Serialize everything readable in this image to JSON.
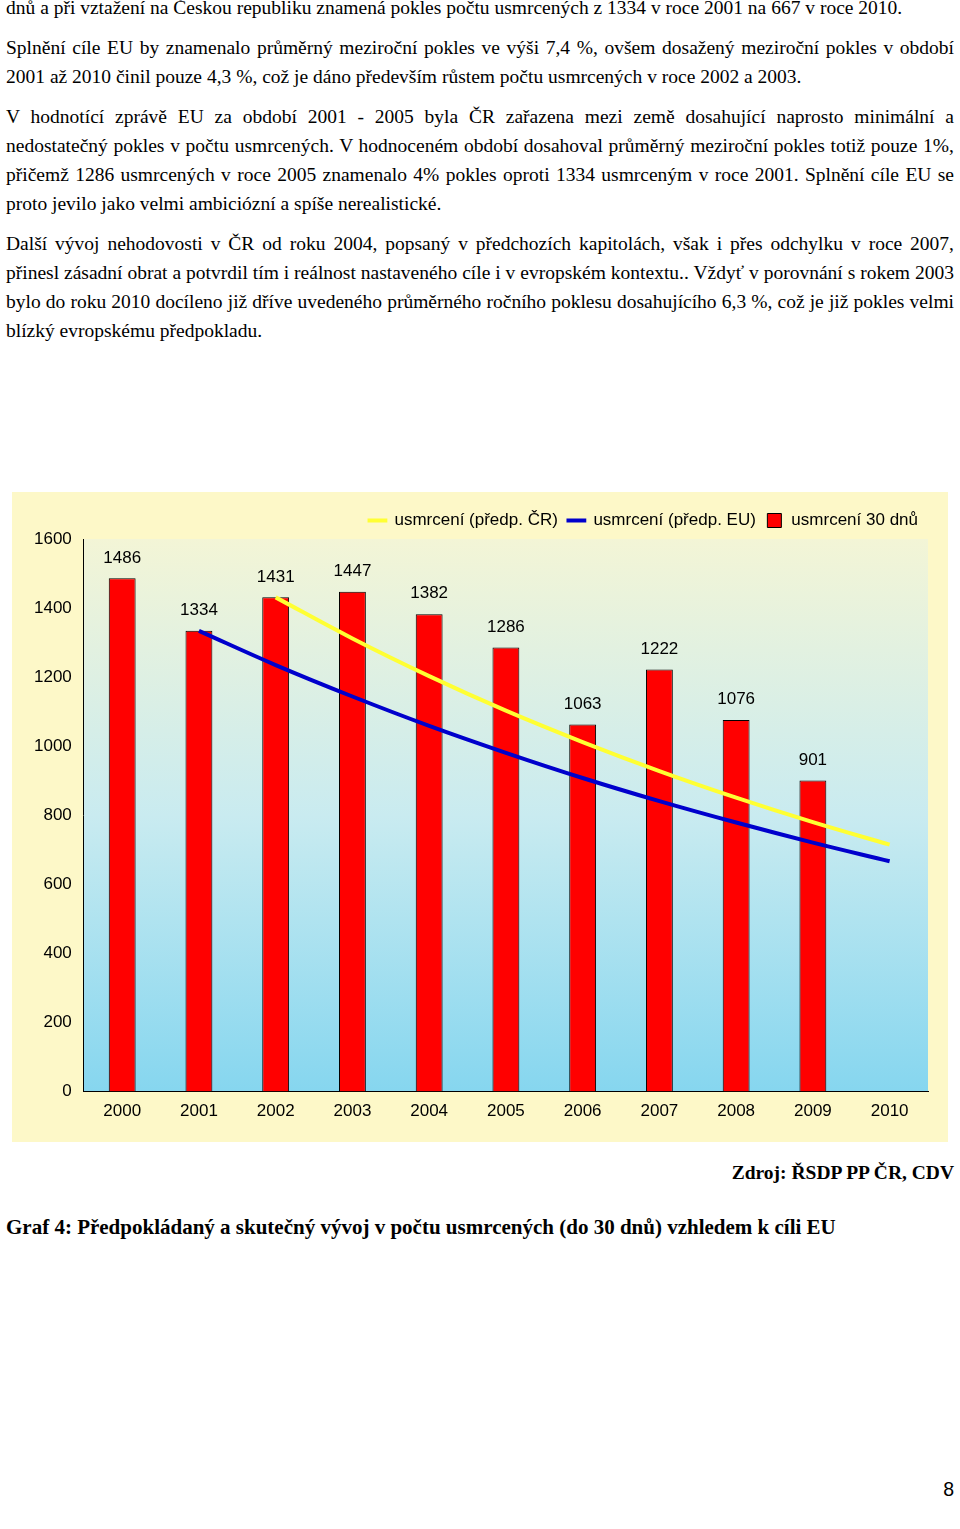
{
  "text": {
    "paragraphs": [
      "dnů a při vztažení na Českou republiku znamená pokles počtu usmrcených z 1334 v roce 2001 na 667 v roce 2010.",
      "Splnění cíle EU by znamenalo průměrný meziroční pokles ve výši 7,4 %, ovšem dosažený meziroční pokles v období 2001 až 2010 činil pouze 4,3 %, což je dáno především růstem počtu usmrcených v roce 2002 a 2003.",
      "V hodnotící zprávě EU za období 2001 - 2005 byla ČR zařazena mezi země dosahující naprosto minimální a nedostatečný pokles v počtu usmrcených. V hodnoceném období dosahoval průměrný meziroční pokles totiž pouze 1%, přičemž 1286 usmrcených v roce 2005 znamenalo 4% pokles oproti 1334 usmrceným v roce 2001. Splnění cíle EU se proto jevilo jako velmi ambiciózní a spíše nerealistické.",
      "Další vývoj nehodovosti v ČR od roku 2004, popsaný v předchozích kapitolách, však i přes odchylku v roce 2007, přinesl zásadní obrat a potvrdil tím i reálnost nastaveného cíle i v evropském kontextu.. Vždyť v porovnání s rokem 2003 bylo do roku 2010 docíleno již dříve uvedeného průměrného ročního poklesu dosahujícího 6,3 %, což je již pokles velmi blízký evropskému předpokladu."
    ],
    "source": "Zdroj: ŘSDP PP ČR, CDV",
    "caption": "Graf 4: Předpokládaný a skutečný vývoj v počtu usmrcených (do 30 dnů) vzhledem k cíli EU",
    "page_number": 8
  },
  "chart_data": {
    "type": "bar",
    "categories": [
      "2000",
      "2001",
      "2002",
      "2003",
      "2004",
      "2005",
      "2006",
      "2007",
      "2008",
      "2009",
      "2010"
    ],
    "series": [
      {
        "name": "usmrcení 30 dnů",
        "type": "bar",
        "color": "#ff0000",
        "data_labels": true,
        "values": [
          1486,
          1334,
          1431,
          1447,
          1382,
          1286,
          1063,
          1222,
          1076,
          901,
          null
        ]
      },
      {
        "name": "usmrcení (předp. ČR)",
        "type": "line",
        "color": "#ffff33",
        "marker": "none",
        "line_style": "solid",
        "values": [
          null,
          null,
          1431,
          1312,
          1203,
          1103,
          1012,
          928,
          851,
          780,
          715
        ]
      },
      {
        "name": "usmrcení (předp. EU)",
        "type": "line",
        "color": "#0000cc",
        "marker": "none",
        "line_style": "solid",
        "values": [
          null,
          1334,
          1235,
          1144,
          1059,
          981,
          908,
          841,
          779,
          721,
          667
        ]
      }
    ],
    "ylim": [
      0,
      1600
    ],
    "yticks": [
      0,
      200,
      400,
      600,
      800,
      1000,
      1200,
      1400,
      1600
    ],
    "grid": false,
    "legend": "upper right"
  }
}
